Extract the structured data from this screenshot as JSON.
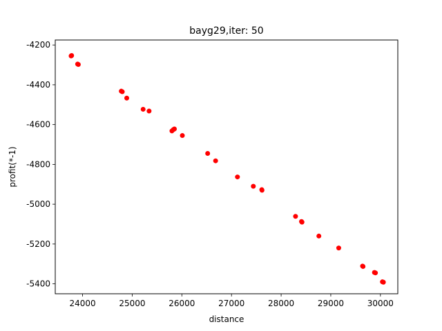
{
  "chart_data": {
    "type": "scatter",
    "title": "bayg29,iter: 50",
    "xlabel": "distance",
    "ylabel": "profit(*-1)",
    "xlim": [
      23450,
      30350
    ],
    "ylim": [
      -5450,
      -4175
    ],
    "xticks": [
      24000,
      25000,
      26000,
      27000,
      28000,
      29000,
      30000
    ],
    "yticks": [
      -4200,
      -4400,
      -4600,
      -4800,
      -5000,
      -5200,
      -5400
    ],
    "xtick_labels": [
      "24000",
      "25000",
      "26000",
      "27000",
      "28000",
      "29000",
      "30000"
    ],
    "ytick_labels": [
      "-4200",
      "-4400",
      "-4600",
      "-4800",
      "-5000",
      "-5200",
      "-5400"
    ],
    "grid": false,
    "marker_color": "#ff0000",
    "series": [
      {
        "points": [
          [
            23780,
            -4253
          ],
          [
            23770,
            -4255
          ],
          [
            23900,
            -4296
          ],
          [
            23915,
            -4298
          ],
          [
            24780,
            -4432
          ],
          [
            24800,
            -4435
          ],
          [
            24890,
            -4467
          ],
          [
            25220,
            -4523
          ],
          [
            25340,
            -4532
          ],
          [
            25800,
            -4632
          ],
          [
            25830,
            -4625
          ],
          [
            25850,
            -4622
          ],
          [
            26010,
            -4655
          ],
          [
            26520,
            -4745
          ],
          [
            26680,
            -4782
          ],
          [
            27120,
            -4863
          ],
          [
            27440,
            -4910
          ],
          [
            27610,
            -4927
          ],
          [
            27615,
            -4930
          ],
          [
            28290,
            -5061
          ],
          [
            28410,
            -5087
          ],
          [
            28420,
            -5090
          ],
          [
            28760,
            -5160
          ],
          [
            29160,
            -5220
          ],
          [
            29640,
            -5311
          ],
          [
            29650,
            -5313
          ],
          [
            29880,
            -5343
          ],
          [
            29900,
            -5345
          ],
          [
            30040,
            -5390
          ],
          [
            30060,
            -5392
          ]
        ]
      }
    ]
  }
}
